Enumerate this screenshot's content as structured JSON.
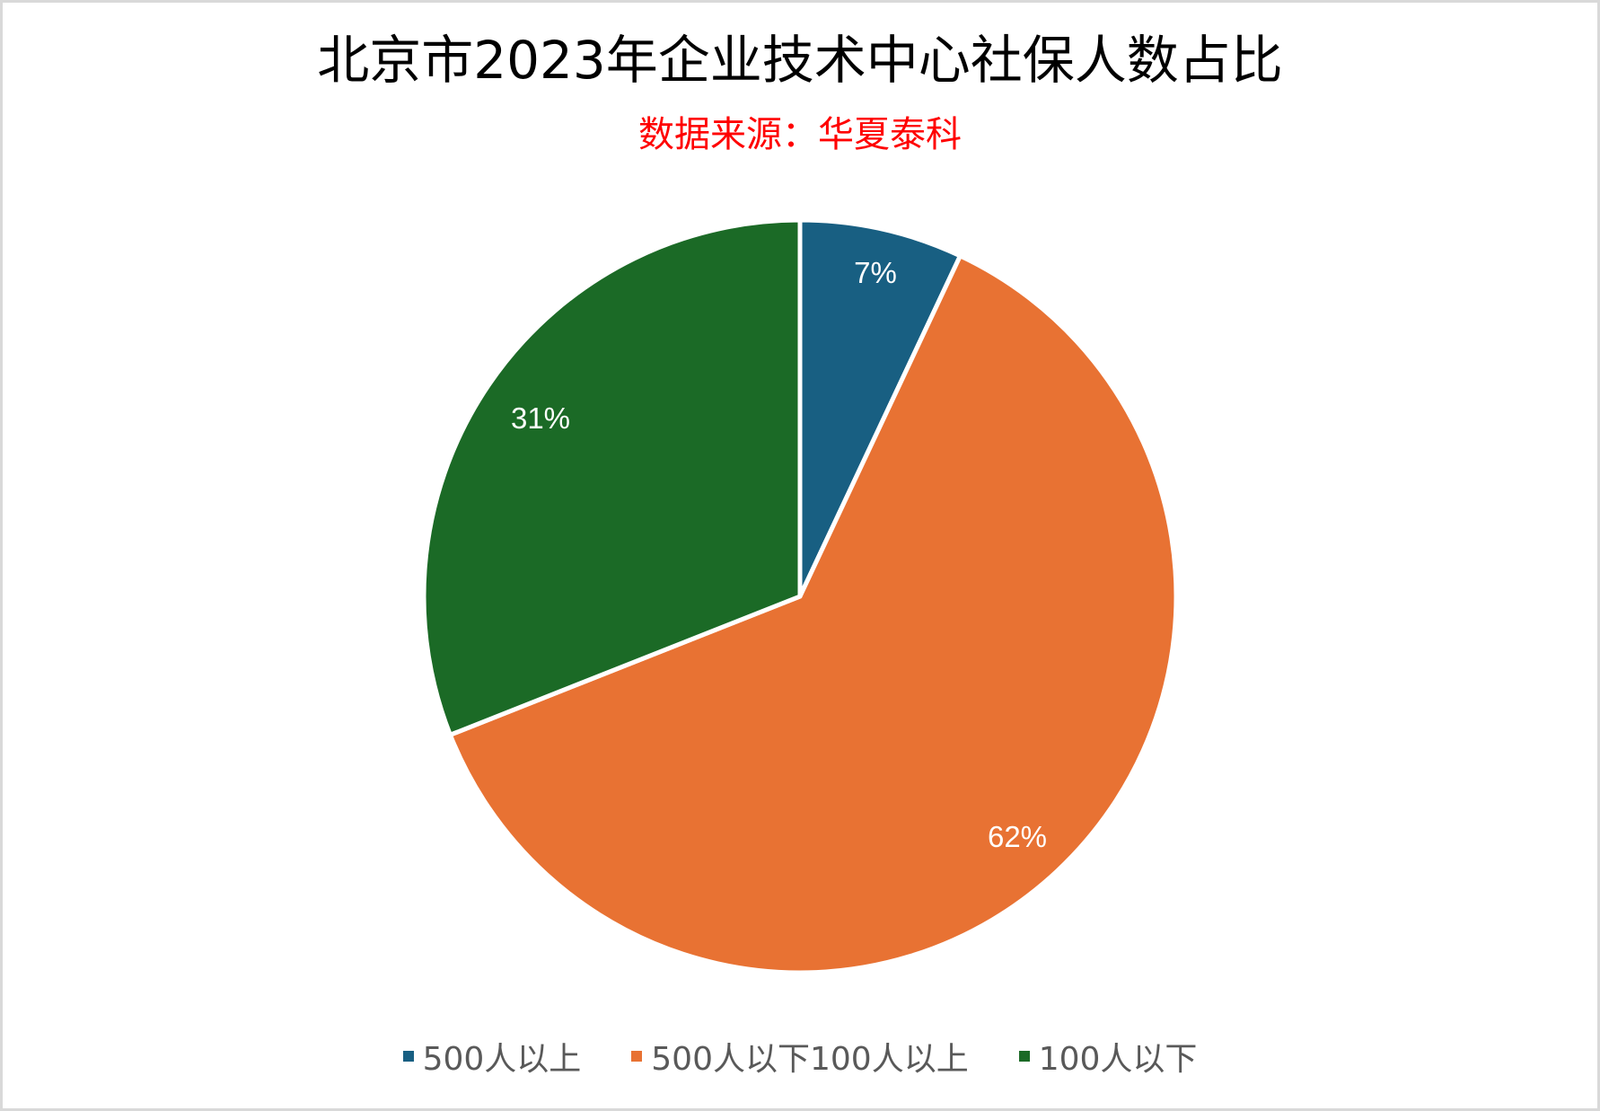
{
  "chart": {
    "title": "北京市2023年企业技术中心社保人数占比",
    "subtitle": "数据来源：华夏泰科",
    "subtitle_color": "#ff0000"
  },
  "legend": [
    {
      "label": "500人以上",
      "color": "#185f82"
    },
    {
      "label": "500人以下100人以上",
      "color": "#e87233"
    },
    {
      "label": "100人以下",
      "color": "#1b6a26"
    }
  ],
  "labels": [
    "7%",
    "62%",
    "31%"
  ],
  "chart_data": {
    "type": "pie",
    "title": "北京市2023年企业技术中心社保人数占比",
    "subtitle": "数据来源：华夏泰科",
    "categories": [
      "500人以上",
      "500人以下100人以上",
      "100人以下"
    ],
    "values": [
      7,
      62,
      31
    ],
    "unit": "%",
    "colors": [
      "#185f82",
      "#e87233",
      "#1b6a26"
    ],
    "start_angle_deg": 0,
    "direction": "clockwise",
    "data_labels": [
      "7%",
      "62%",
      "31%"
    ],
    "legend_position": "bottom"
  }
}
